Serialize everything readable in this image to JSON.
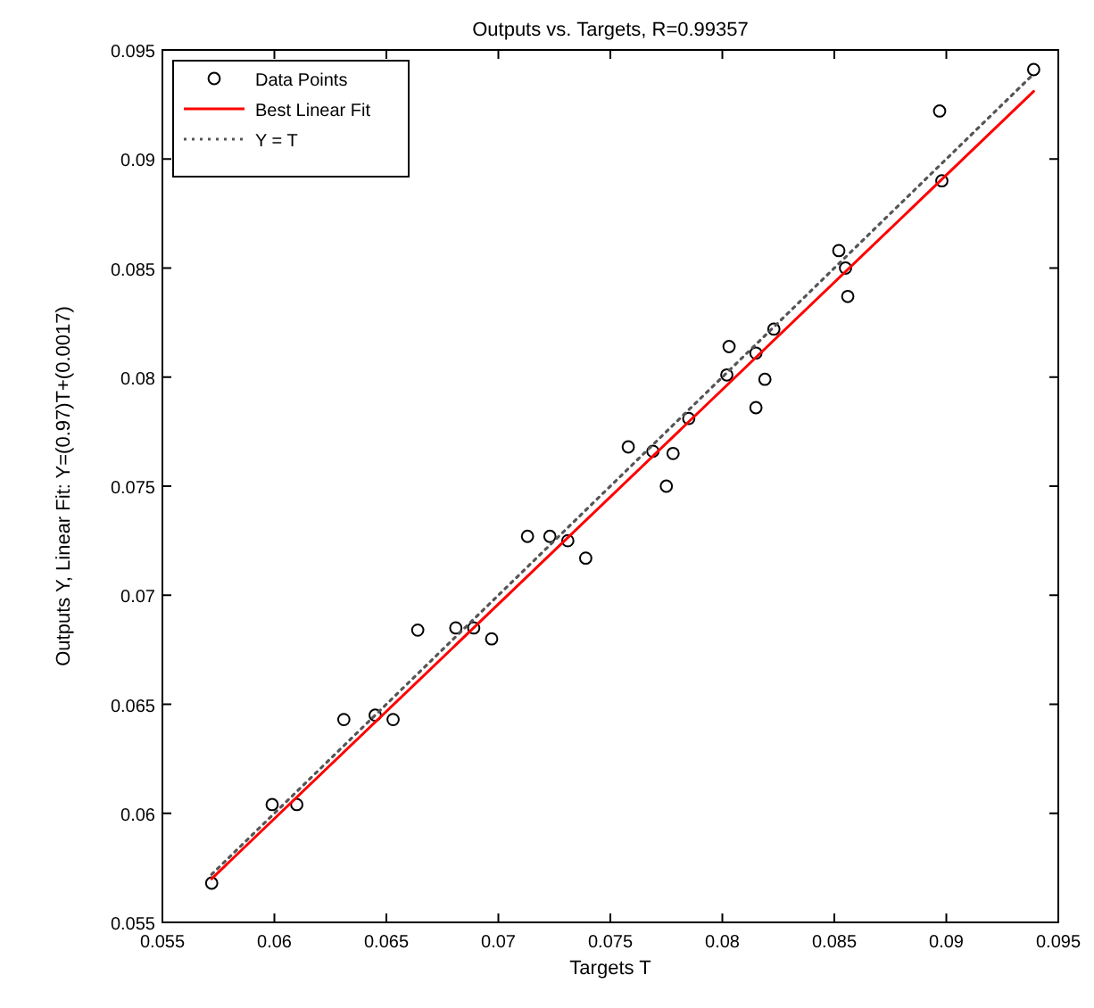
{
  "chart_data": {
    "type": "scatter",
    "title": "Outputs vs. Targets, R=0.99357",
    "xlabel": "Targets T",
    "ylabel": "Outputs Y, Linear Fit: Y=(0.97)T+(0.0017)",
    "xlim": [
      0.055,
      0.095
    ],
    "ylim": [
      0.055,
      0.095
    ],
    "xticks": [
      0.055,
      0.06,
      0.065,
      0.07,
      0.075,
      0.08,
      0.085,
      0.09,
      0.095
    ],
    "yticks": [
      0.055,
      0.06,
      0.065,
      0.07,
      0.075,
      0.08,
      0.085,
      0.09,
      0.095
    ],
    "grid": false,
    "legend": "top left",
    "series": [
      {
        "name": "Data Points",
        "marker": "circle",
        "color": "#000000",
        "x": [
          0.0572,
          0.0599,
          0.061,
          0.0631,
          0.0645,
          0.0653,
          0.0664,
          0.0681,
          0.0689,
          0.0697,
          0.0713,
          0.0723,
          0.0731,
          0.0739,
          0.0758,
          0.0769,
          0.0778,
          0.0775,
          0.0785,
          0.0803,
          0.0802,
          0.0815,
          0.0819,
          0.0815,
          0.0823,
          0.0852,
          0.0855,
          0.0856,
          0.0897,
          0.0898,
          0.0939
        ],
        "values": [
          0.0568,
          0.0604,
          0.0604,
          0.0643,
          0.0645,
          0.0643,
          0.0684,
          0.0685,
          0.0685,
          0.068,
          0.0727,
          0.0727,
          0.0725,
          0.0717,
          0.0768,
          0.0766,
          0.0765,
          0.075,
          0.0781,
          0.0814,
          0.0801,
          0.0811,
          0.0799,
          0.0786,
          0.0822,
          0.0858,
          0.085,
          0.0837,
          0.0922,
          0.089,
          0.0941
        ]
      },
      {
        "name": "Best Linear Fit",
        "type": "line",
        "marker": "none",
        "line_style": "solid",
        "color": "#ff0000",
        "x": [
          0.0572,
          0.0939
        ],
        "values": [
          0.057,
          0.0931
        ]
      },
      {
        "name": "Y = T",
        "type": "line",
        "marker": "none",
        "line_style": "dotted",
        "color": "#555555",
        "x": [
          0.0572,
          0.0939
        ],
        "values": [
          0.0572,
          0.0939
        ]
      }
    ]
  }
}
